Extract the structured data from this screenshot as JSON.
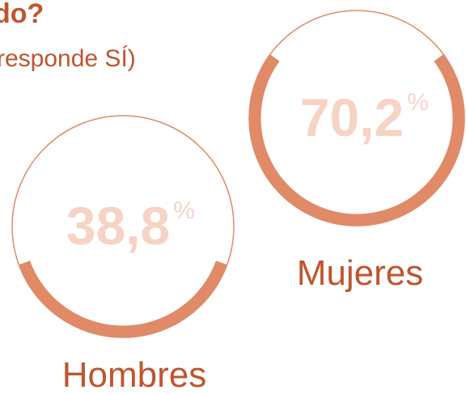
{
  "chart_data": {
    "type": "ring",
    "title": "do?",
    "subtitle": "responde SÍ)",
    "categories": [
      "Hombres",
      "Mujeres"
    ],
    "values": [
      38.8,
      70.2
    ],
    "value_labels": [
      "38,8",
      "70,2"
    ],
    "unit": "%",
    "color": "#e08a68"
  }
}
